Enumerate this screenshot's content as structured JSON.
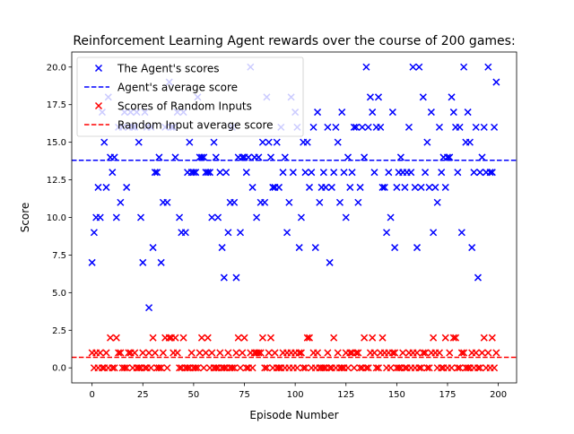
{
  "chart_data": {
    "type": "scatter",
    "title": "Reinforcement Learning Agent rewards over the course of 200 games:",
    "xlabel": "Episode Number",
    "ylabel": "Score",
    "xlim": [
      -10,
      209
    ],
    "ylim": [
      -1,
      21
    ],
    "xticks": [
      0,
      25,
      50,
      75,
      100,
      125,
      150,
      175,
      200
    ],
    "yticks": [
      0.0,
      2.5,
      5.0,
      7.5,
      10.0,
      12.5,
      15.0,
      17.5,
      20.0
    ],
    "ytick_labels": [
      "0.0",
      "2.5",
      "5.0",
      "7.5",
      "10.0",
      "12.5",
      "15.0",
      "17.5",
      "20.0"
    ],
    "grid": false,
    "legend_position": "top-left",
    "series": [
      {
        "name": "The Agent's scores",
        "kind": "scatter",
        "marker": "x",
        "color": "#0000ff",
        "x": [
          0,
          1,
          2,
          3,
          4,
          5,
          6,
          7,
          8,
          9,
          10,
          11,
          12,
          13,
          14,
          15,
          16,
          17,
          18,
          19,
          20,
          21,
          22,
          23,
          24,
          25,
          26,
          27,
          28,
          29,
          30,
          31,
          32,
          33,
          34,
          35,
          36,
          37,
          38,
          39,
          40,
          41,
          42,
          43,
          44,
          45,
          46,
          47,
          48,
          49,
          50,
          51,
          52,
          53,
          54,
          55,
          56,
          57,
          58,
          59,
          60,
          61,
          62,
          63,
          64,
          65,
          66,
          67,
          68,
          69,
          70,
          71,
          72,
          73,
          74,
          75,
          76,
          77,
          78,
          79,
          80,
          81,
          82,
          83,
          84,
          85,
          86,
          87,
          88,
          89,
          90,
          91,
          92,
          93,
          94,
          95,
          96,
          97,
          98,
          99,
          100,
          101,
          102,
          103,
          104,
          105,
          106,
          107,
          108,
          109,
          110,
          111,
          112,
          113,
          114,
          115,
          116,
          117,
          118,
          119,
          120,
          121,
          122,
          123,
          124,
          125,
          126,
          127,
          128,
          129,
          130,
          131,
          132,
          133,
          134,
          135,
          136,
          137,
          138,
          139,
          140,
          141,
          142,
          143,
          144,
          145,
          146,
          147,
          148,
          149,
          150,
          151,
          152,
          153,
          154,
          155,
          156,
          157,
          158,
          159,
          160,
          161,
          162,
          163,
          164,
          165,
          166,
          167,
          168,
          169,
          170,
          171,
          172,
          173,
          174,
          175,
          176,
          177,
          178,
          179,
          180,
          181,
          182,
          183,
          184,
          185,
          186,
          187,
          188,
          189,
          190,
          191,
          192,
          193,
          194,
          195,
          196,
          197,
          198,
          199
        ],
        "y": [
          7,
          9,
          10,
          12,
          10,
          17,
          15,
          12,
          18,
          14,
          13,
          14,
          10,
          16,
          11,
          16,
          17,
          12,
          16,
          17,
          16,
          16,
          17,
          15,
          10,
          7,
          17,
          16,
          4,
          16,
          8,
          13,
          13,
          14,
          7,
          11,
          16,
          11,
          19,
          16,
          16,
          14,
          17,
          10,
          9,
          17,
          9,
          13,
          15,
          13,
          13,
          13,
          18,
          14,
          14,
          14,
          13,
          13,
          13,
          10,
          15,
          14,
          10,
          13,
          8,
          6,
          13,
          9,
          11,
          16,
          11,
          6,
          14,
          9,
          14,
          14,
          13,
          14,
          20,
          12,
          14,
          10,
          14,
          11,
          15,
          11,
          18,
          15,
          14,
          12,
          12,
          15,
          12,
          16,
          13,
          14,
          9,
          11,
          18,
          13,
          17,
          16,
          8,
          10,
          15,
          13,
          15,
          12,
          13,
          16,
          8,
          17,
          11,
          12,
          13,
          12,
          16,
          7,
          12,
          13,
          16,
          15,
          11,
          17,
          13,
          10,
          14,
          12,
          13,
          16,
          16,
          11,
          12,
          16,
          14,
          20,
          16,
          18,
          17,
          13,
          16,
          18,
          16,
          12,
          12,
          9,
          13,
          10,
          17,
          8,
          12,
          13,
          14,
          13,
          12,
          13,
          16,
          13,
          20,
          12,
          8,
          20,
          12,
          18,
          13,
          15,
          12,
          17,
          9,
          12,
          11,
          16,
          13,
          14,
          12,
          14,
          14,
          18,
          17,
          16,
          13,
          16,
          9,
          20,
          15,
          17,
          15,
          8,
          13,
          16,
          6,
          13,
          14,
          16,
          13,
          20,
          13,
          13,
          16,
          19
        ]
      },
      {
        "name": "Agent's average score",
        "kind": "hline",
        "style": "dashed",
        "color": "#0000ff",
        "value": 13.8
      },
      {
        "name": "Scores of Random Inputs",
        "kind": "scatter",
        "marker": "x",
        "color": "#ff0000",
        "x": [
          0,
          1,
          2,
          3,
          4,
          5,
          6,
          7,
          8,
          9,
          10,
          11,
          12,
          13,
          14,
          15,
          16,
          17,
          18,
          19,
          20,
          21,
          22,
          23,
          24,
          25,
          26,
          27,
          28,
          29,
          30,
          31,
          32,
          33,
          34,
          35,
          36,
          37,
          38,
          39,
          40,
          41,
          42,
          43,
          44,
          45,
          46,
          47,
          48,
          49,
          50,
          51,
          52,
          53,
          54,
          55,
          56,
          57,
          58,
          59,
          60,
          61,
          62,
          63,
          64,
          65,
          66,
          67,
          68,
          69,
          70,
          71,
          72,
          73,
          74,
          75,
          76,
          77,
          78,
          79,
          80,
          81,
          82,
          83,
          84,
          85,
          86,
          87,
          88,
          89,
          90,
          91,
          92,
          93,
          94,
          95,
          96,
          97,
          98,
          99,
          100,
          101,
          102,
          103,
          104,
          105,
          106,
          107,
          108,
          109,
          110,
          111,
          112,
          113,
          114,
          115,
          116,
          117,
          118,
          119,
          120,
          121,
          122,
          123,
          124,
          125,
          126,
          127,
          128,
          129,
          130,
          131,
          132,
          133,
          134,
          135,
          136,
          137,
          138,
          139,
          140,
          141,
          142,
          143,
          144,
          145,
          146,
          147,
          148,
          149,
          150,
          151,
          152,
          153,
          154,
          155,
          156,
          157,
          158,
          159,
          160,
          161,
          162,
          163,
          164,
          165,
          166,
          167,
          168,
          169,
          170,
          171,
          172,
          173,
          174,
          175,
          176,
          177,
          178,
          179,
          180,
          181,
          182,
          183,
          184,
          185,
          186,
          187,
          188,
          189,
          190,
          191,
          192,
          193,
          194,
          195,
          196,
          197,
          198,
          199
        ],
        "y": [
          1,
          0,
          1,
          0,
          1,
          0,
          0,
          1,
          0,
          2,
          0,
          0,
          2,
          1,
          1,
          0,
          0,
          0,
          1,
          1,
          0,
          1,
          0,
          0,
          0,
          1,
          0,
          0,
          1,
          0,
          2,
          1,
          0,
          0,
          0,
          1,
          2,
          0,
          2,
          2,
          1,
          2,
          1,
          0,
          0,
          2,
          0,
          0,
          0,
          1,
          0,
          0,
          0,
          1,
          2,
          0,
          1,
          2,
          0,
          1,
          0,
          0,
          0,
          1,
          0,
          0,
          0,
          1,
          0,
          0,
          0,
          1,
          2,
          0,
          1,
          2,
          0,
          0,
          1,
          0,
          1,
          1,
          1,
          1,
          2,
          0,
          0,
          1,
          2,
          0,
          1,
          0,
          0,
          0,
          1,
          0,
          1,
          0,
          1,
          0,
          1,
          0,
          1,
          1,
          0,
          0,
          2,
          2,
          0,
          1,
          0,
          1,
          0,
          0,
          0,
          0,
          1,
          0,
          0,
          2,
          0,
          1,
          0,
          0,
          0,
          1,
          0,
          1,
          1,
          0,
          1,
          1,
          0,
          0,
          2,
          0,
          0,
          1,
          2,
          1,
          0,
          0,
          1,
          2,
          1,
          0,
          1,
          0,
          1,
          1,
          0,
          0,
          0,
          1,
          0,
          0,
          1,
          0,
          1,
          0,
          1,
          0,
          0,
          1,
          1,
          0,
          0,
          1,
          2,
          1,
          0,
          1,
          0,
          0,
          2,
          0,
          1,
          0,
          2,
          2,
          0,
          0,
          1,
          1,
          0,
          0,
          0,
          1,
          0,
          1,
          0,
          0,
          1,
          2,
          0,
          1,
          0,
          2,
          0,
          1
        ]
      },
      {
        "name": "Random Input average score",
        "kind": "hline",
        "style": "dashed",
        "color": "#ff0000",
        "value": 0.7
      }
    ]
  }
}
